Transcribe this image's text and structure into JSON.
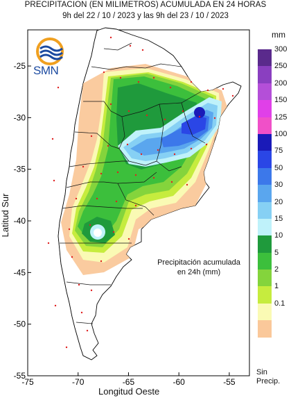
{
  "header": {
    "title": "PRECIPITACION (EN MILIMETROS) ACUMULADA EN 24 HORAS",
    "period": "9h del 22 / 10 / 2023  y las 9h del 23 / 10 / 2023"
  },
  "map": {
    "lon_range": [
      -75,
      -53
    ],
    "lat_range": [
      -55,
      -21.5
    ],
    "x_axis_label": "Longitud Oeste",
    "y_axis_label": "Latitud Sur",
    "x_ticks": [
      {
        "value": -75,
        "label": "-75"
      },
      {
        "value": -70,
        "label": "-70"
      },
      {
        "value": -65,
        "label": "-65"
      },
      {
        "value": -60,
        "label": "-60"
      },
      {
        "value": -55,
        "label": "-55"
      }
    ],
    "y_ticks": [
      {
        "value": -25,
        "label": "-25"
      },
      {
        "value": -30,
        "label": "-30"
      },
      {
        "value": -35,
        "label": "-35"
      },
      {
        "value": -40,
        "label": "-40"
      },
      {
        "value": -45,
        "label": "-45"
      },
      {
        "value": -50,
        "label": "-50"
      },
      {
        "value": -55,
        "label": "-55"
      }
    ],
    "annotation_line1": "Precipitación acumulada",
    "annotation_line2": "en 24h (mm)"
  },
  "logo": {
    "text": "SMN"
  },
  "legend": {
    "unit": "mm",
    "no_data_line1": "Sin",
    "no_data_line2": "Precip.",
    "levels": [
      {
        "label": "300",
        "color": "#5a2a8c"
      },
      {
        "label": "250",
        "color": "#8a3fc0"
      },
      {
        "label": "200",
        "color": "#b44fd8"
      },
      {
        "label": "150",
        "color": "#e040e8"
      },
      {
        "label": "125",
        "color": "#f050c8"
      },
      {
        "label": "100",
        "color": "#1a1ab8"
      },
      {
        "label": "75",
        "color": "#2a46e6"
      },
      {
        "label": "50",
        "color": "#3c78ea"
      },
      {
        "label": "30",
        "color": "#5aa6ee"
      },
      {
        "label": "20",
        "color": "#86d0f4"
      },
      {
        "label": "15",
        "color": "#bff2fa"
      },
      {
        "label": "10",
        "color": "#1f9a3c"
      },
      {
        "label": "5",
        "color": "#3cbf3c"
      },
      {
        "label": "2",
        "color": "#84d43c"
      },
      {
        "label": "1",
        "color": "#c6ec3e"
      },
      {
        "label": "0.1",
        "color": "#fafab4"
      },
      {
        "label": "",
        "color": "#fac89a"
      }
    ]
  }
}
